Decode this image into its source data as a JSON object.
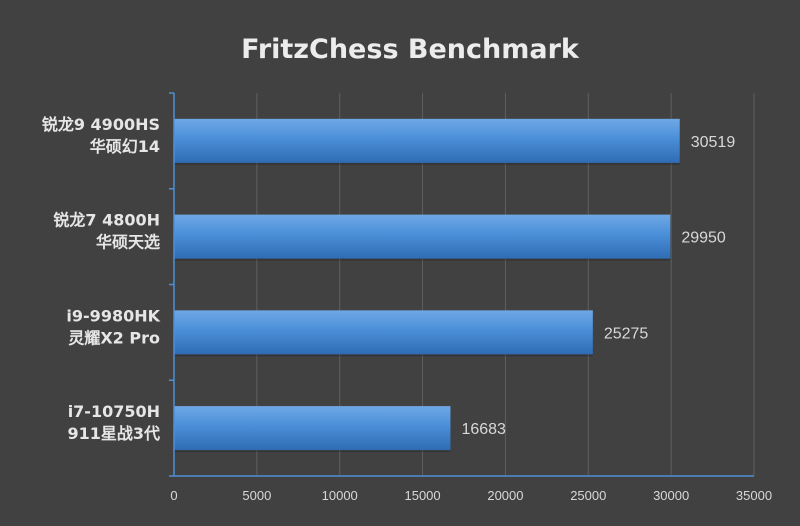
{
  "chart_data": {
    "type": "bar",
    "orientation": "horizontal",
    "title": "FritzChess Benchmark",
    "categories": [
      [
        "锐龙9 4900HS",
        "华硕幻14"
      ],
      [
        "锐龙7 4800H",
        "华硕天选"
      ],
      [
        "i9-9980HK",
        "灵耀X2 Pro"
      ],
      [
        "i7-10750H",
        "911星战3代"
      ]
    ],
    "values": [
      30519,
      29950,
      25275,
      16683
    ],
    "xlim": [
      0,
      35000
    ],
    "x_ticks": [
      0,
      5000,
      10000,
      15000,
      20000,
      25000,
      30000,
      35000
    ],
    "grid": true,
    "data_labels": true,
    "colors": {
      "background": "#414141",
      "bar_top": "#6fa8e6",
      "bar_mid": "#4a8fd8",
      "bar_bottom": "#2f6cb4",
      "axis": "#4f8fd6",
      "grid": "#5f5f5f"
    }
  }
}
